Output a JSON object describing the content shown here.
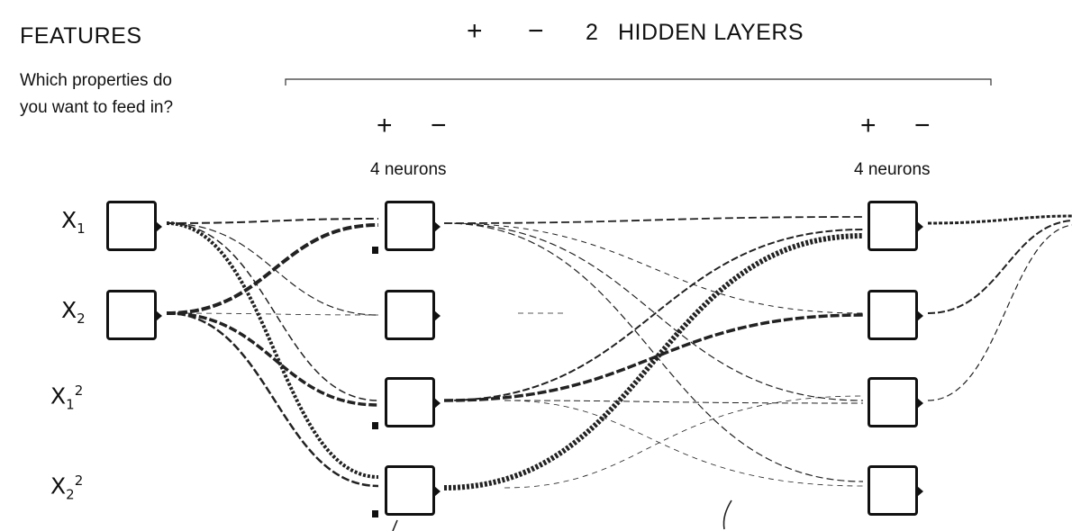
{
  "features": {
    "title": "FEATURES",
    "description": "Which properties do you want to feed in?",
    "inputs": [
      {
        "base": "X",
        "sub": "1",
        "sup": ""
      },
      {
        "base": "X",
        "sub": "2",
        "sup": ""
      },
      {
        "base": "X",
        "sub": "1",
        "sup": "2"
      },
      {
        "base": "X",
        "sub": "2",
        "sup": "2"
      }
    ]
  },
  "network": {
    "add_layer_symbol": "+",
    "remove_layer_symbol": "−",
    "layers_count": "2",
    "layers_label": "HIDDEN LAYERS",
    "layers": [
      {
        "add_symbol": "+",
        "remove_symbol": "−",
        "neurons_label": "4 neurons"
      },
      {
        "add_symbol": "+",
        "remove_symbol": "−",
        "neurons_label": "4 neurons"
      }
    ]
  },
  "colors": {
    "stroke": "#111111",
    "background": "#ffffff"
  }
}
